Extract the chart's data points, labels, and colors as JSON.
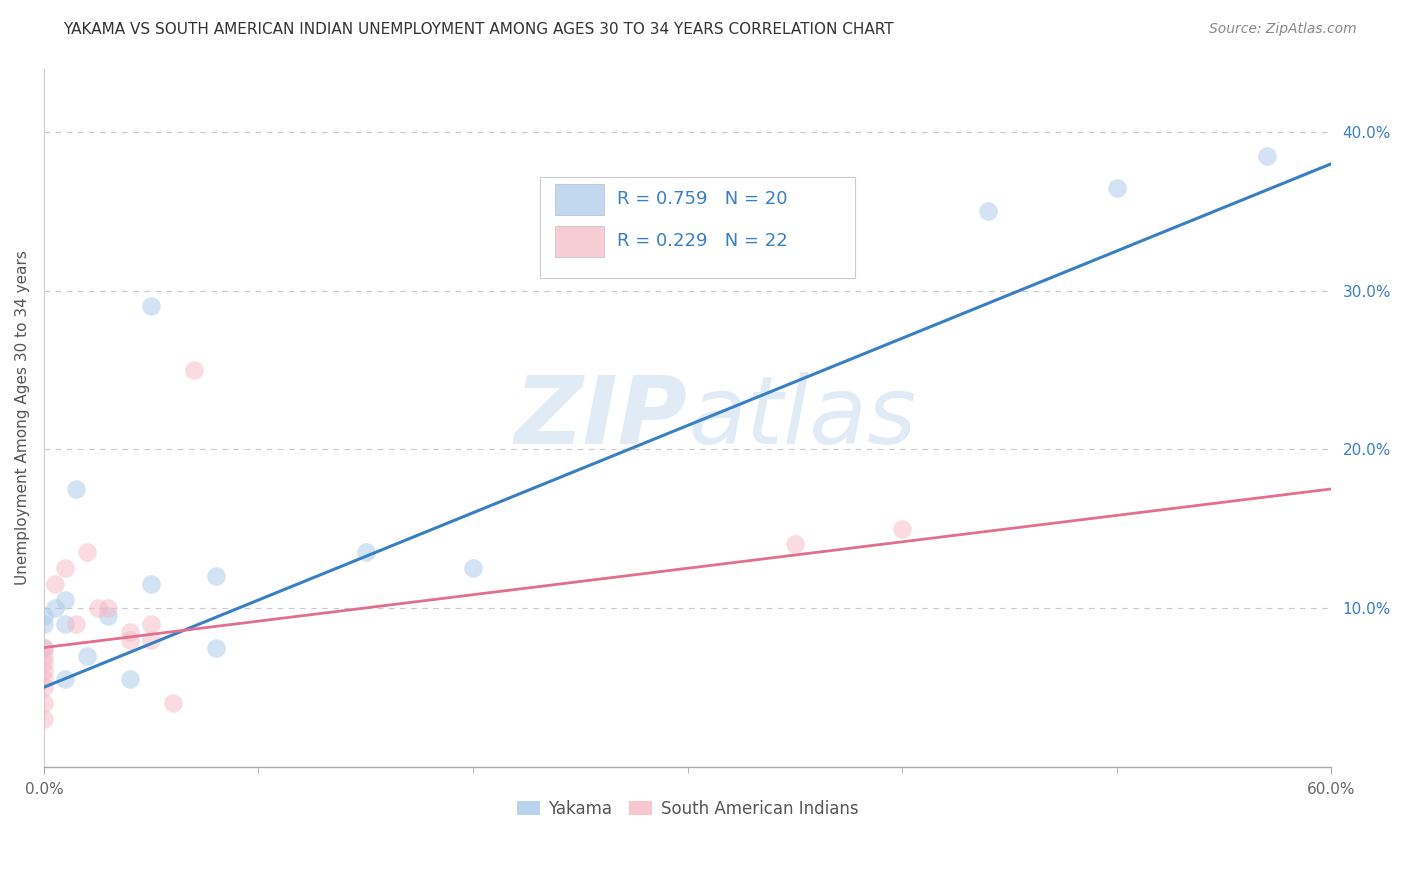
{
  "title": "YAKAMA VS SOUTH AMERICAN INDIAN UNEMPLOYMENT AMONG AGES 30 TO 34 YEARS CORRELATION CHART",
  "source": "Source: ZipAtlas.com",
  "ylabel": "Unemployment Among Ages 30 to 34 years",
  "xlim": [
    0.0,
    0.6
  ],
  "ylim": [
    0.0,
    0.44
  ],
  "xtick_major": [
    0.0,
    0.6
  ],
  "xtick_minor": [
    0.1,
    0.2,
    0.3,
    0.4,
    0.5
  ],
  "yticks_right": [
    0.1,
    0.2,
    0.3,
    0.4
  ],
  "watermark": "ZIPatlas",
  "legend_line1_r": "0.759",
  "legend_line1_n": "20",
  "legend_line2_r": "0.229",
  "legend_line2_n": "22",
  "blue_color": "#a8c8e8",
  "pink_color": "#f5b8c4",
  "blue_line_color": "#3a7fc1",
  "pink_line_color": "#e07090",
  "legend_text_color": "#3a7fc1",
  "legend_r_color": "#3a7fc1",
  "legend_n_color": "#3a7fc1",
  "yakama_x": [
    0.0,
    0.0,
    0.0,
    0.005,
    0.01,
    0.01,
    0.01,
    0.015,
    0.02,
    0.03,
    0.04,
    0.05,
    0.05,
    0.08,
    0.08,
    0.15,
    0.2,
    0.44,
    0.5,
    0.57
  ],
  "yakama_y": [
    0.095,
    0.09,
    0.075,
    0.1,
    0.105,
    0.09,
    0.055,
    0.175,
    0.07,
    0.095,
    0.055,
    0.29,
    0.115,
    0.12,
    0.075,
    0.135,
    0.125,
    0.35,
    0.365,
    0.385
  ],
  "sai_x": [
    0.0,
    0.0,
    0.0,
    0.0,
    0.0,
    0.0,
    0.0,
    0.0,
    0.005,
    0.01,
    0.015,
    0.02,
    0.025,
    0.03,
    0.04,
    0.04,
    0.05,
    0.05,
    0.06,
    0.07,
    0.35,
    0.4
  ],
  "sai_y": [
    0.05,
    0.055,
    0.06,
    0.065,
    0.07,
    0.075,
    0.04,
    0.03,
    0.115,
    0.125,
    0.09,
    0.135,
    0.1,
    0.1,
    0.08,
    0.085,
    0.08,
    0.09,
    0.04,
    0.25,
    0.14,
    0.15
  ],
  "blue_line_x": [
    0.0,
    0.6
  ],
  "blue_line_y": [
    0.05,
    0.38
  ],
  "pink_line_x": [
    0.0,
    0.6
  ],
  "pink_line_y": [
    0.075,
    0.175
  ],
  "dot_size": 180,
  "dot_alpha": 0.5,
  "grid_color": "#c8c8d0",
  "bg_color": "#ffffff"
}
